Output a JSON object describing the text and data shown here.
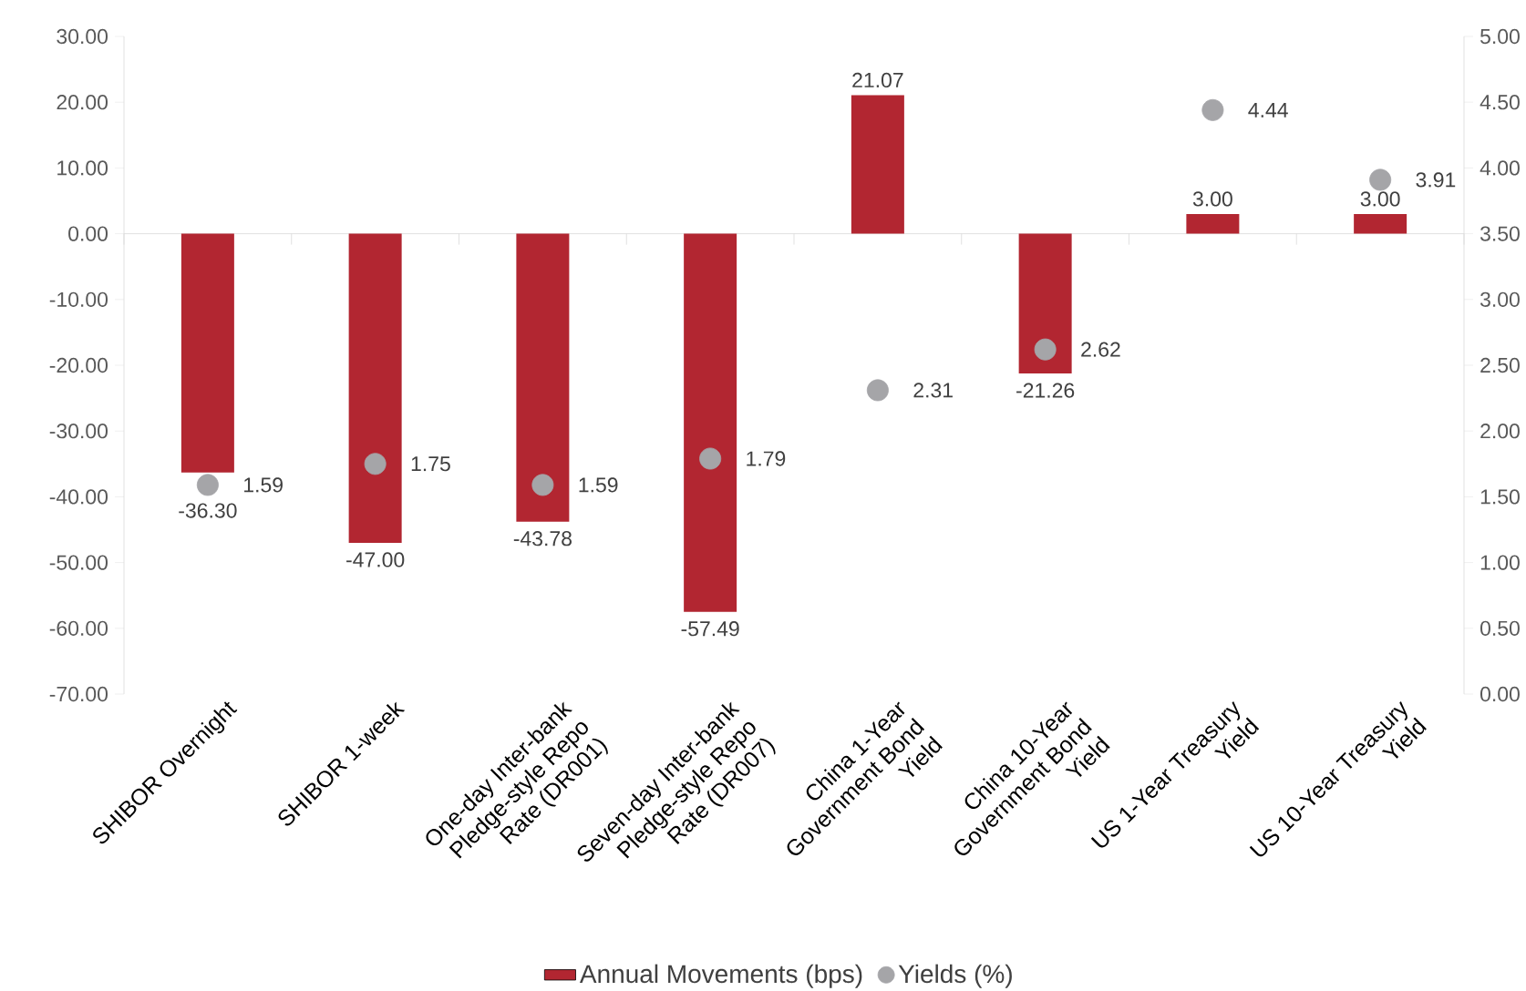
{
  "chart_data": {
    "type": "bar",
    "categories": [
      "SHIBOR Overnight",
      "SHIBOR 1-week",
      "One-day Inter-bank Pledge-style Repo Rate (DR001)",
      "Seven-day Inter-bank Pledge-style Repo Rate (DR007)",
      "China 1-Year Government Bond Yield",
      "China 10-Year Government Bond Yield",
      "US 1-Year Treasury Yield",
      "US 10-Year Treasury Yield"
    ],
    "series": [
      {
        "name": "Annual Movements (bps)",
        "color": "#b22631",
        "values": [
          -36.3,
          -47.0,
          -43.78,
          -57.49,
          21.07,
          -21.26,
          3.0,
          3.0
        ],
        "value_labels": [
          "-36.30",
          "-47.00",
          "-43.78",
          "-57.49",
          "21.07",
          "-21.26",
          "3.00",
          "3.00"
        ]
      },
      {
        "name": "Yields (%)",
        "type": "scatter",
        "axis": "y2",
        "marker": "circle",
        "color": "#a5a5a8",
        "values": [
          1.59,
          1.75,
          1.59,
          1.79,
          2.31,
          2.62,
          4.44,
          3.91
        ],
        "value_labels": [
          "1.59",
          "1.75",
          "1.59",
          "1.79",
          "2.31",
          "2.62",
          "4.44",
          "3.91"
        ]
      }
    ],
    "ylim": [
      -70,
      30
    ],
    "yticks": [
      {
        "value": -70,
        "label": "-70.00"
      },
      {
        "value": -60,
        "label": "-60.00"
      },
      {
        "value": -50,
        "label": "-50.00"
      },
      {
        "value": -40,
        "label": "-40.00"
      },
      {
        "value": -30,
        "label": "-30.00"
      },
      {
        "value": -20,
        "label": "-20.00"
      },
      {
        "value": -10,
        "label": "-10.00"
      },
      {
        "value": 0,
        "label": "0.00"
      },
      {
        "value": 10,
        "label": "10.00"
      },
      {
        "value": 20,
        "label": "20.00"
      },
      {
        "value": 30,
        "label": "30.00"
      }
    ],
    "y2lim": [
      0,
      5
    ],
    "y2ticks": [
      {
        "value": 0,
        "label": "0.00"
      },
      {
        "value": 0.5,
        "label": "0.50"
      },
      {
        "value": 1,
        "label": "1.00"
      },
      {
        "value": 1.5,
        "label": "1.50"
      },
      {
        "value": 2,
        "label": "2.00"
      },
      {
        "value": 2.5,
        "label": "2.50"
      },
      {
        "value": 3,
        "label": "3.00"
      },
      {
        "value": 3.5,
        "label": "3.50"
      },
      {
        "value": 4,
        "label": "4.00"
      },
      {
        "value": 4.5,
        "label": "4.50"
      },
      {
        "value": 5,
        "label": "5.00"
      }
    ],
    "legend": "bottom"
  }
}
